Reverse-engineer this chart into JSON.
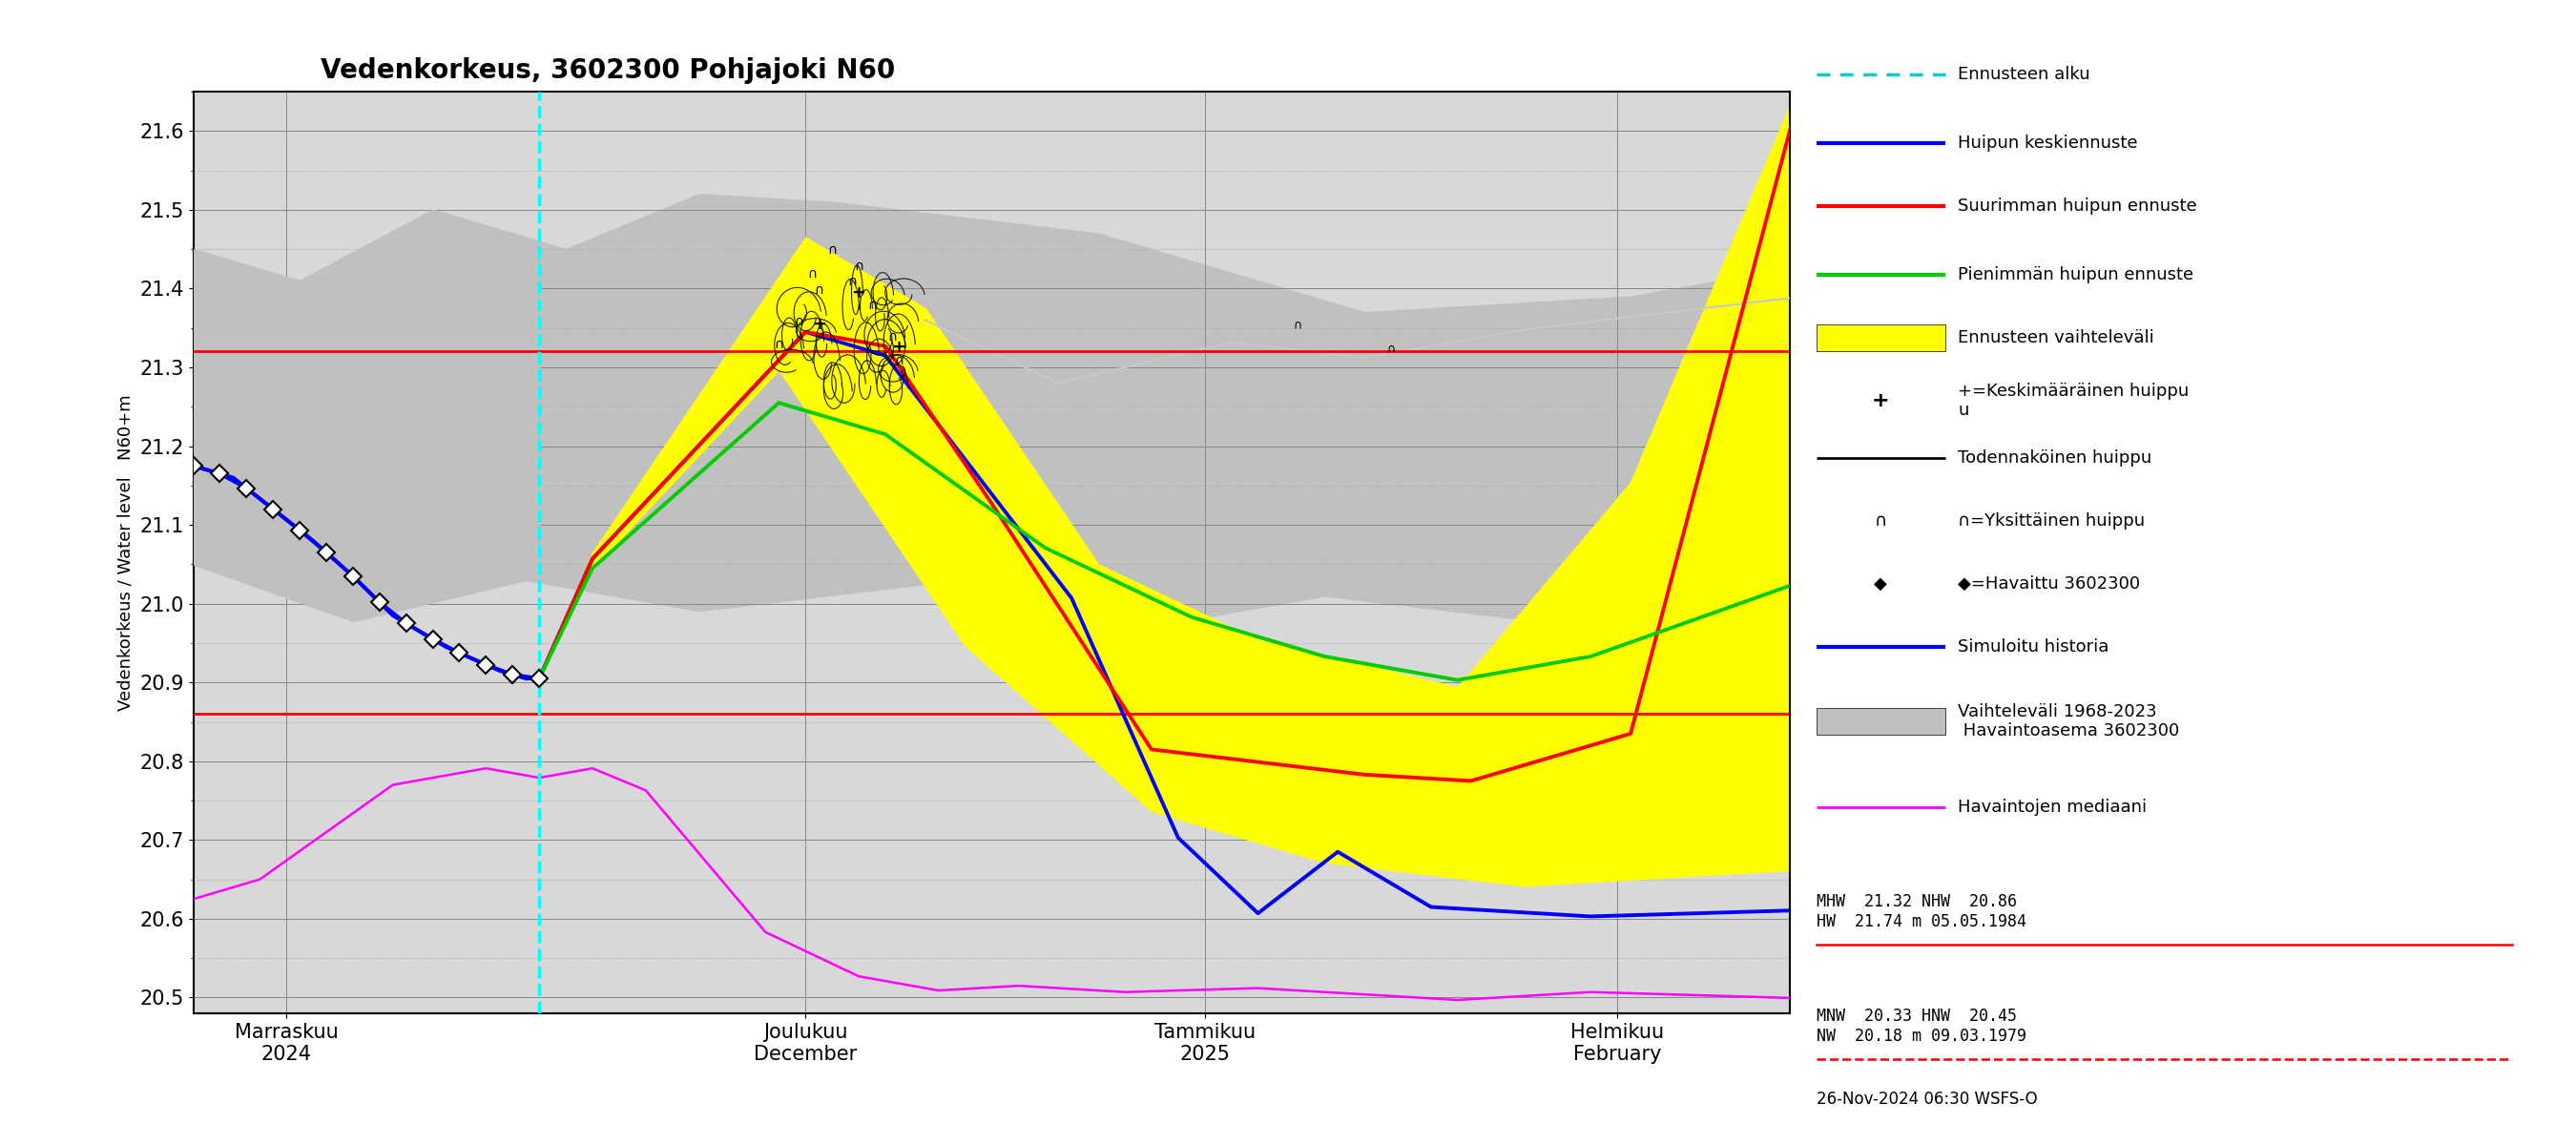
{
  "title": "Vedenkorkeus, 3602300 Pohjajoki N60",
  "ylabel": "Vedenkorkeus / Water level   N60+m",
  "ylim": [
    20.48,
    21.65
  ],
  "yticks": [
    20.5,
    20.6,
    20.7,
    20.8,
    20.9,
    21.0,
    21.1,
    21.2,
    21.3,
    21.4,
    21.5,
    21.6
  ],
  "red_lines": [
    21.32,
    20.86
  ],
  "date_text": "26-Nov-2024 06:30 WSFS-O",
  "xticklabels": [
    "Marraskuu\n2024",
    "Joulukuu\nDecember",
    "Tammikuu\n2025",
    "Helmikuu\nFebruary"
  ]
}
